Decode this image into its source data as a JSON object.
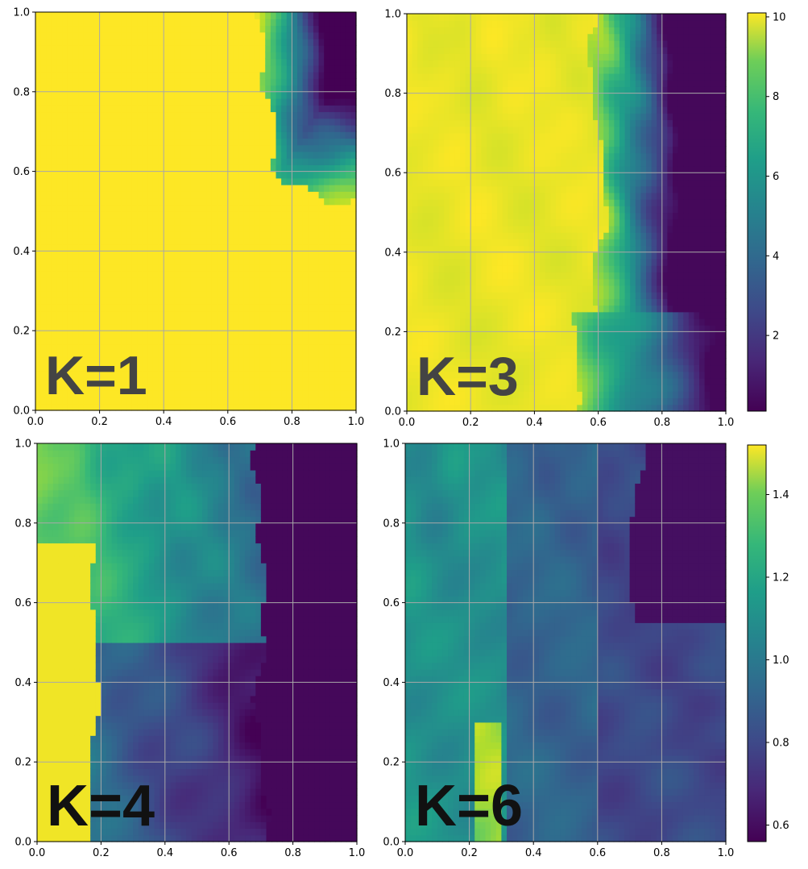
{
  "chart_data": [
    {
      "type": "heatmap",
      "panel_label": "K=1",
      "xlim": [
        0,
        1
      ],
      "ylim": [
        0,
        1
      ],
      "x_ticks": [
        "0.0",
        "0.2",
        "0.4",
        "0.6",
        "0.8",
        "1.0"
      ],
      "y_ticks": [
        "0.0",
        "0.2",
        "0.4",
        "0.6",
        "0.8",
        "1.0"
      ],
      "grid": true,
      "colormap": "viridis",
      "value_range": [
        0.1,
        10.1
      ],
      "description_regions": "almost uniformly at max; low-value patch in upper-right corner"
    },
    {
      "type": "heatmap",
      "panel_label": "K=3",
      "xlim": [
        0,
        1
      ],
      "ylim": [
        0,
        1
      ],
      "x_ticks": [
        "0.0",
        "0.2",
        "0.4",
        "0.6",
        "0.8",
        "1.0"
      ],
      "y_ticks": [
        "0.0",
        "0.2",
        "0.4",
        "0.6",
        "0.8",
        "1.0"
      ],
      "grid": true,
      "colormap": "viridis",
      "value_range": [
        0.1,
        10.1
      ],
      "description_regions": "high on left (x<0.6), decreasing to minimum on right"
    },
    {
      "type": "heatmap",
      "panel_label": "K=4",
      "xlim": [
        0,
        1
      ],
      "ylim": [
        0,
        1
      ],
      "x_ticks": [
        "0.0",
        "0.2",
        "0.4",
        "0.6",
        "0.8",
        "1.0"
      ],
      "y_ticks": [
        "0.0",
        "0.2",
        "0.4",
        "0.6",
        "0.8",
        "1.0"
      ],
      "grid": true,
      "colormap": "viridis",
      "value_range": [
        0.56,
        1.52
      ],
      "description_regions": "yellow band at left, green top, dark purple right of x≈0.7"
    },
    {
      "type": "heatmap",
      "panel_label": "K=6",
      "xlim": [
        0,
        1
      ],
      "ylim": [
        0,
        1
      ],
      "x_ticks": [
        "0.0",
        "0.2",
        "0.4",
        "0.6",
        "0.8",
        "1.0"
      ],
      "y_ticks": [
        "0.0",
        "0.2",
        "0.4",
        "0.6",
        "0.8",
        "1.0"
      ],
      "grid": true,
      "colormap": "viridis",
      "value_range": [
        0.56,
        1.52
      ],
      "description_regions": "teal/blue left, yellow streak near x≈0.25 bottom, purple right"
    }
  ],
  "colorbars": [
    {
      "ticks": [
        "2",
        "4",
        "6",
        "8",
        "10"
      ],
      "tick_values": [
        2,
        4,
        6,
        8,
        10
      ],
      "range": [
        0.1,
        10.1
      ]
    },
    {
      "ticks": [
        "0.6",
        "0.8",
        "1.0",
        "1.2",
        "1.4"
      ],
      "tick_values": [
        0.6,
        0.8,
        1.0,
        1.2,
        1.4
      ],
      "range": [
        0.56,
        1.52
      ]
    }
  ]
}
